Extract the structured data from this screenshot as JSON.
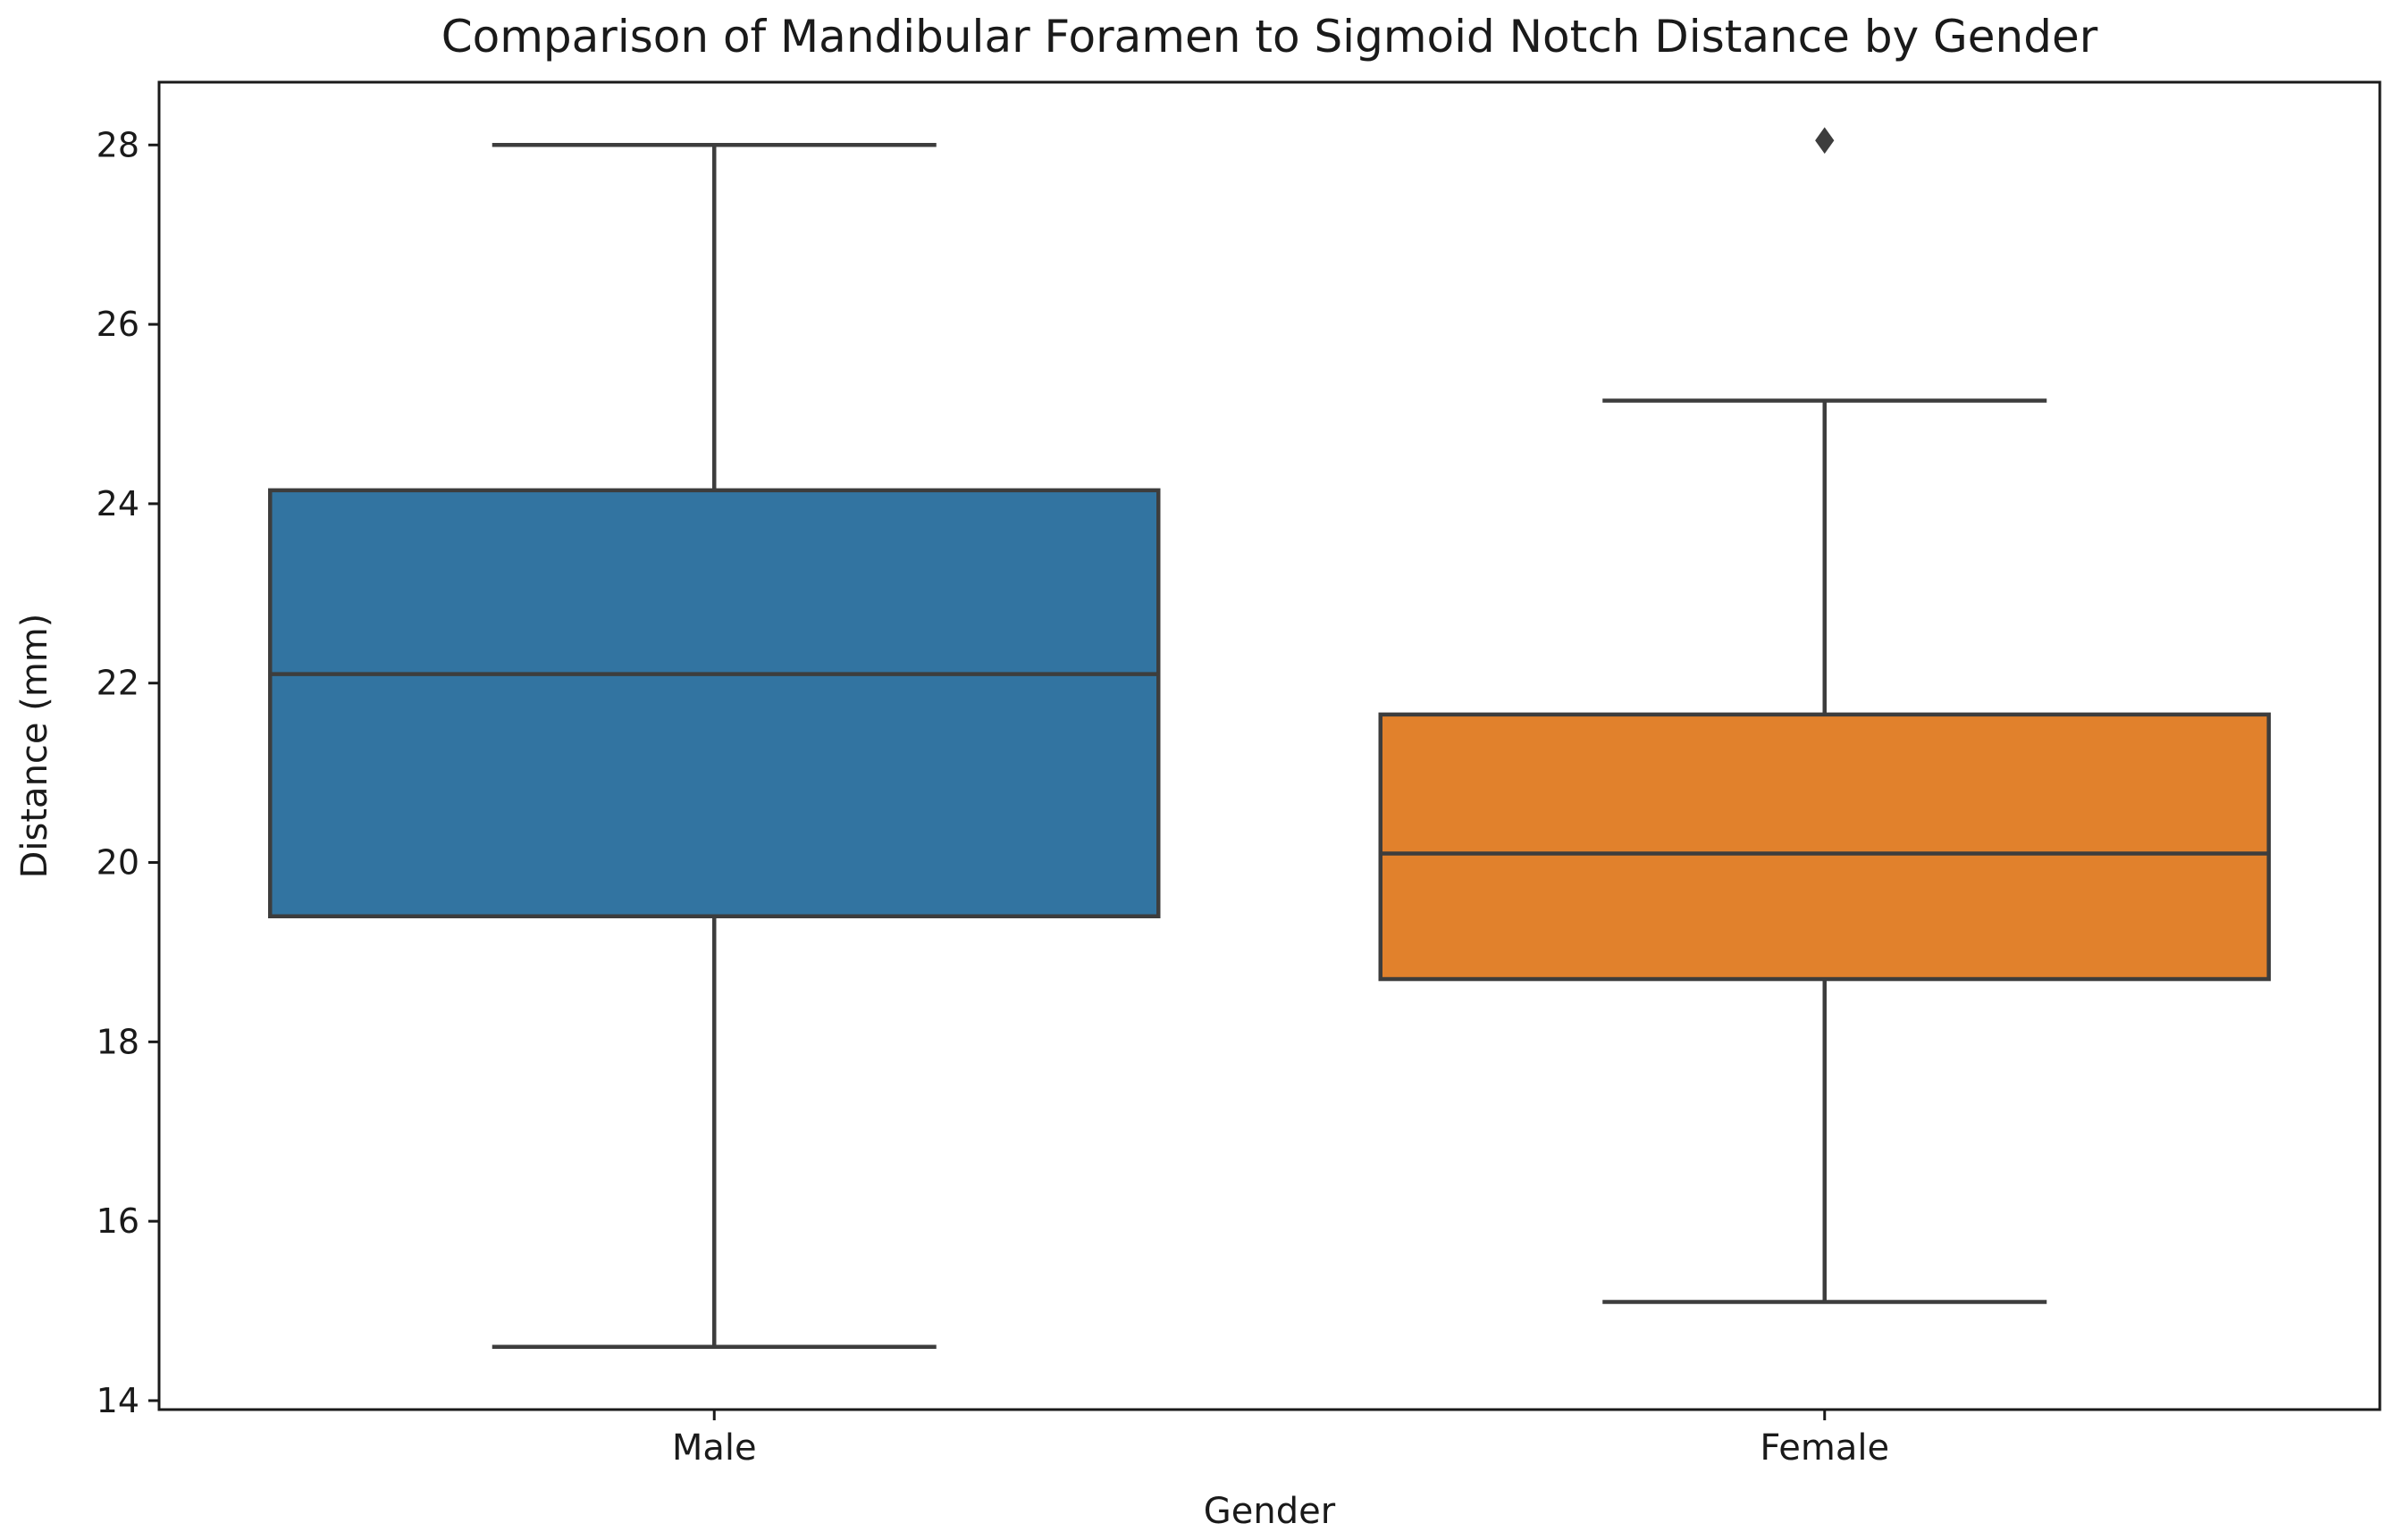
{
  "chart_data": {
    "type": "box",
    "title": "Comparison of Mandibular Foramen to Sigmoid Notch Distance by Gender",
    "xlabel": "Gender",
    "ylabel": "Distance (mm)",
    "ylim": [
      13.9,
      28.7
    ],
    "yticks": [
      14,
      16,
      18,
      20,
      22,
      24,
      26,
      28
    ],
    "grid": false,
    "categories": [
      "Male",
      "Female"
    ],
    "series": [
      {
        "category": "Male",
        "color": "#3274a1",
        "whisker_low": 14.6,
        "q1": 19.4,
        "median": 22.1,
        "q3": 24.15,
        "whisker_high": 28.0,
        "outliers": []
      },
      {
        "category": "Female",
        "color": "#e1812c",
        "whisker_low": 15.1,
        "q1": 18.7,
        "median": 20.1,
        "q3": 21.65,
        "whisker_high": 25.15,
        "outliers": [
          28.05
        ]
      }
    ]
  }
}
